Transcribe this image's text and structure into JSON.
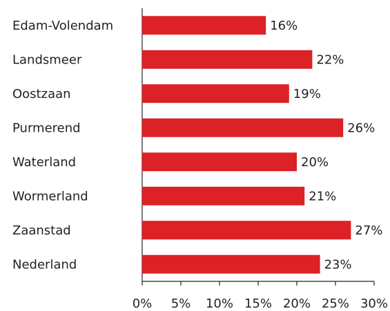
{
  "chart_data": {
    "type": "bar",
    "orientation": "horizontal",
    "categories": [
      "Edam-Volendam",
      "Landsmeer",
      "Oostzaan",
      "Purmerend",
      "Waterland",
      "Wormerland",
      "Zaanstad",
      "Nederland"
    ],
    "values": [
      16,
      22,
      19,
      26,
      20,
      21,
      27,
      23
    ],
    "value_labels": [
      "16%",
      "22%",
      "19%",
      "26%",
      "20%",
      "21%",
      "27%",
      "23%"
    ],
    "color": "#dc2127",
    "xlim": [
      0,
      30
    ],
    "xticks": [
      {
        "value": 0,
        "label": "0%"
      },
      {
        "value": 5,
        "label": "5%"
      },
      {
        "value": 10,
        "label": "10%"
      },
      {
        "value": 15,
        "label": "15%"
      },
      {
        "value": 20,
        "label": "20%"
      },
      {
        "value": 25,
        "label": "25%"
      },
      {
        "value": 30,
        "label": "30%"
      }
    ],
    "grid": false
  }
}
